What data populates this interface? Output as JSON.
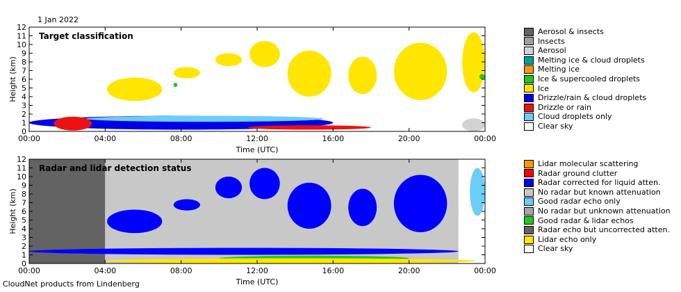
{
  "date_label": "1 Jan 2022",
  "footer": "CloudNet products from Lindenberg",
  "chart_data": [
    {
      "type": "heatmap",
      "title": "Target classification",
      "xlabel": "Time (UTC)",
      "ylabel": "Height (km)",
      "xticks": [
        "00:00",
        "04:00",
        "08:00",
        "12:00",
        "16:00",
        "20:00",
        "00:00"
      ],
      "yticks": [
        0,
        1,
        2,
        3,
        4,
        5,
        6,
        7,
        8,
        9,
        10,
        11,
        12
      ],
      "xlim": [
        0,
        24
      ],
      "ylim": [
        0,
        12
      ],
      "legend": [
        {
          "label": "Aerosol & insects",
          "color": "#636363"
        },
        {
          "label": "Insects",
          "color": "#a0a0a0"
        },
        {
          "label": "Aerosol",
          "color": "#d2d2d2"
        },
        {
          "label": "Melting ice & cloud droplets",
          "color": "#009e9e"
        },
        {
          "label": "Melting ice",
          "color": "#ff9900"
        },
        {
          "label": "Ice & supercooled droplets",
          "color": "#1fc81f"
        },
        {
          "label": "Ice",
          "color": "#ffe600"
        },
        {
          "label": "Drizzle/rain & cloud droplets",
          "color": "#0000e6"
        },
        {
          "label": "Drizzle or rain",
          "color": "#ee1111"
        },
        {
          "label": "Cloud droplets only",
          "color": "#6ccdf9"
        },
        {
          "label": "Clear sky",
          "color": "#ffffff"
        }
      ],
      "regions": [
        {
          "class": "Ice",
          "t": [
            4.1,
            7.0
          ],
          "z": [
            3.5,
            6.2
          ]
        },
        {
          "class": "Ice",
          "t": [
            7.6,
            9.0
          ],
          "z": [
            6.1,
            7.4
          ]
        },
        {
          "class": "Ice",
          "t": [
            9.8,
            11.2
          ],
          "z": [
            7.5,
            9.0
          ]
        },
        {
          "class": "Ice",
          "t": [
            11.6,
            13.2
          ],
          "z": [
            7.4,
            10.4
          ]
        },
        {
          "class": "Ice",
          "t": [
            13.6,
            15.9
          ],
          "z": [
            4.0,
            9.3
          ]
        },
        {
          "class": "Ice",
          "t": [
            16.8,
            18.3
          ],
          "z": [
            4.3,
            8.6
          ]
        },
        {
          "class": "Ice",
          "t": [
            19.2,
            22.0
          ],
          "z": [
            3.6,
            10.2
          ]
        },
        {
          "class": "Ice",
          "t": [
            22.8,
            24.0
          ],
          "z": [
            4.5,
            11.4
          ]
        },
        {
          "class": "Ice & supercooled droplets",
          "t": [
            23.7,
            24.0
          ],
          "z": [
            6.0,
            6.6
          ]
        },
        {
          "class": "Ice & supercooled droplets",
          "t": [
            7.6,
            7.8
          ],
          "z": [
            5.1,
            5.6
          ]
        },
        {
          "class": "Drizzle/rain & cloud droplets",
          "t": [
            0.0,
            16.0
          ],
          "z": [
            0.2,
            1.8
          ]
        },
        {
          "class": "Drizzle or rain",
          "t": [
            1.3,
            3.3
          ],
          "z": [
            0.1,
            1.7
          ]
        },
        {
          "class": "Drizzle or rain",
          "t": [
            11.5,
            18.0
          ],
          "z": [
            0.2,
            0.7
          ]
        },
        {
          "class": "Cloud droplets only",
          "t": [
            3.0,
            15.5
          ],
          "z": [
            1.1,
            1.8
          ]
        },
        {
          "class": "Aerosol",
          "t": [
            22.8,
            24.0
          ],
          "z": [
            0.0,
            1.5
          ]
        }
      ]
    },
    {
      "type": "heatmap",
      "title": "Radar and lidar detection status",
      "xlabel": "Time (UTC)",
      "ylabel": "Height (km)",
      "xticks": [
        "00:00",
        "04:00",
        "08:00",
        "12:00",
        "16:00",
        "20:00",
        "00:00"
      ],
      "yticks": [
        0,
        1,
        2,
        3,
        4,
        5,
        6,
        7,
        8,
        9,
        10,
        11,
        12
      ],
      "xlim": [
        0,
        24
      ],
      "ylim": [
        0,
        12
      ],
      "legend": [
        {
          "label": "Lidar molecular scattering",
          "color": "#ff9900"
        },
        {
          "label": "Radar ground clutter",
          "color": "#ff0000"
        },
        {
          "label": "Radar corrected for liquid atten.",
          "color": "#0000ff"
        },
        {
          "label": "No radar but known attenuation",
          "color": "#c8c8c8"
        },
        {
          "label": "Good radar echo only",
          "color": "#6ccdf9"
        },
        {
          "label": "No radar but unknown attenuation",
          "color": "#a6a6a6"
        },
        {
          "label": "Good radar & lidar echos",
          "color": "#1fc81f"
        },
        {
          "label": "Radar echo but uncorrected atten.",
          "color": "#636363"
        },
        {
          "label": "Lidar echo only",
          "color": "#ffe600"
        },
        {
          "label": "Clear sky",
          "color": "#ffffff"
        }
      ],
      "regions": [
        {
          "class": "Radar echo but uncorrected atten.",
          "t": [
            0.0,
            4.0
          ],
          "z": [
            0.0,
            12.0
          ]
        },
        {
          "class": "No radar but known attenuation",
          "t": [
            4.0,
            22.6
          ],
          "z": [
            0.0,
            12.0
          ]
        },
        {
          "class": "Radar corrected for liquid atten.",
          "t": [
            4.1,
            7.0
          ],
          "z": [
            3.5,
            6.2
          ]
        },
        {
          "class": "Radar corrected for liquid atten.",
          "t": [
            7.6,
            9.0
          ],
          "z": [
            6.1,
            7.4
          ]
        },
        {
          "class": "Radar corrected for liquid atten.",
          "t": [
            9.8,
            11.2
          ],
          "z": [
            7.5,
            10.0
          ]
        },
        {
          "class": "Radar corrected for liquid atten.",
          "t": [
            11.6,
            13.2
          ],
          "z": [
            7.4,
            11.0
          ]
        },
        {
          "class": "Radar corrected for liquid atten.",
          "t": [
            13.6,
            15.9
          ],
          "z": [
            4.0,
            9.3
          ]
        },
        {
          "class": "Radar corrected for liquid atten.",
          "t": [
            16.8,
            18.3
          ],
          "z": [
            4.3,
            8.6
          ]
        },
        {
          "class": "Radar corrected for liquid atten.",
          "t": [
            19.2,
            22.0
          ],
          "z": [
            3.6,
            10.2
          ]
        },
        {
          "class": "Radar corrected for liquid atten.",
          "t": [
            0.0,
            22.6
          ],
          "z": [
            1.0,
            1.8
          ]
        },
        {
          "class": "Good radar & lidar echos",
          "t": [
            10.0,
            20.0
          ],
          "z": [
            0.3,
            0.9
          ]
        },
        {
          "class": "Lidar echo only",
          "t": [
            4.0,
            23.5
          ],
          "z": [
            0.0,
            0.6
          ]
        },
        {
          "class": "Good radar echo only",
          "t": [
            23.2,
            24.0
          ],
          "z": [
            5.5,
            11.0
          ]
        }
      ]
    }
  ]
}
